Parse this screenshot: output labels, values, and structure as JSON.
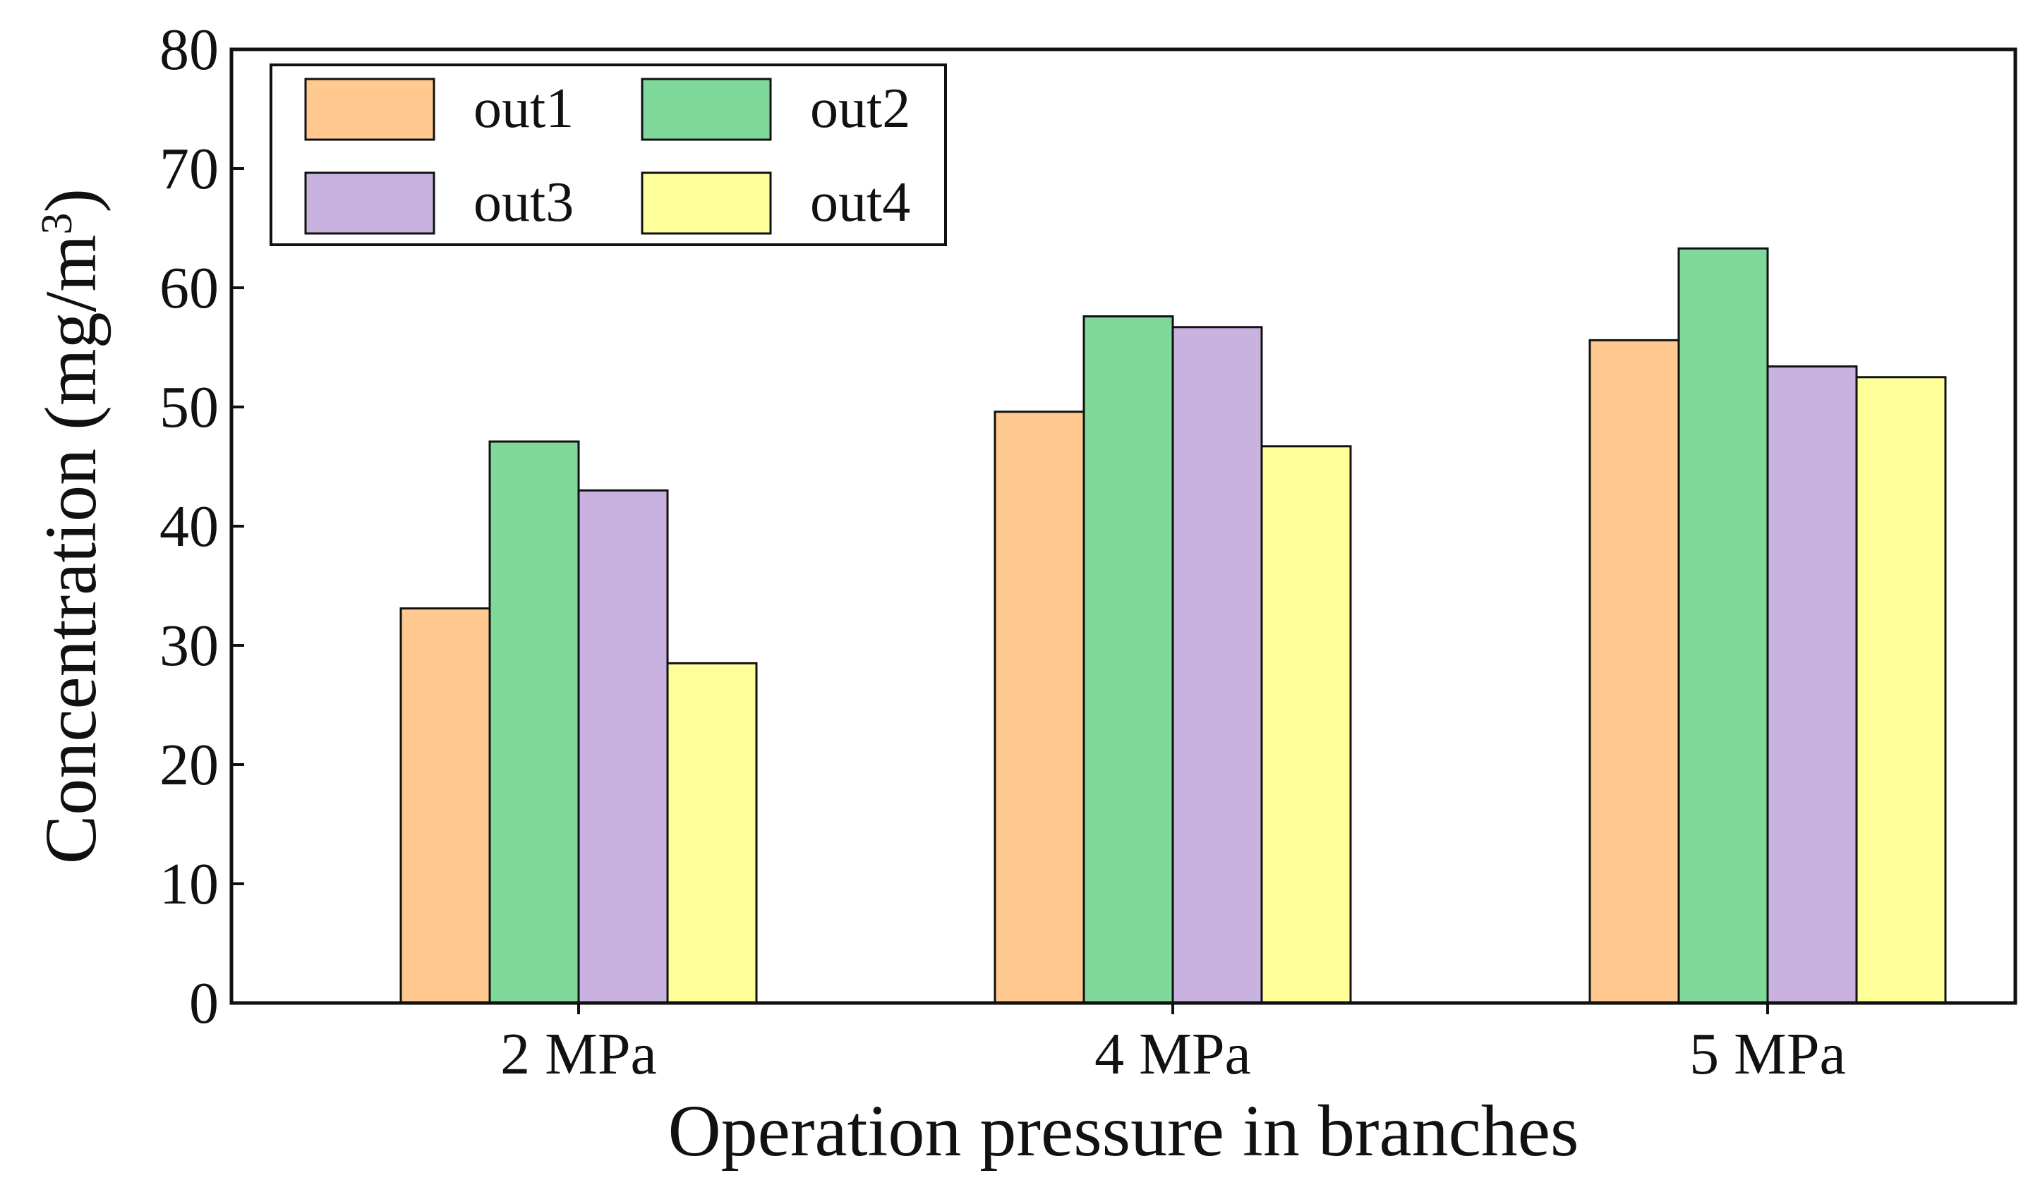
{
  "chart_data": {
    "type": "bar",
    "title": "",
    "xlabel": "Operation pressure in branches",
    "ylabel": "Concentration (mg/m",
    "ylabel_sup": "3",
    "ylabel_end": ")",
    "ylim": [
      0,
      80
    ],
    "yticks": [
      "0",
      "10",
      "20",
      "30",
      "40",
      "50",
      "60",
      "70",
      "80"
    ],
    "categories": [
      "2 MPa",
      "4 MPa",
      "5 MPa"
    ],
    "series": [
      {
        "name": "out1",
        "color": "#ffc98f",
        "values": [
          33.1,
          49.6,
          55.6
        ]
      },
      {
        "name": "out2",
        "color": "#7fd99a",
        "values": [
          47.1,
          57.6,
          63.3
        ]
      },
      {
        "name": "out3",
        "color": "#c9b2e0",
        "values": [
          43.0,
          56.7,
          53.4
        ]
      },
      {
        "name": "out4",
        "color": "#ffff9a",
        "values": [
          28.5,
          46.7,
          52.5
        ]
      }
    ],
    "legend_position": "top-left",
    "grid": false
  }
}
